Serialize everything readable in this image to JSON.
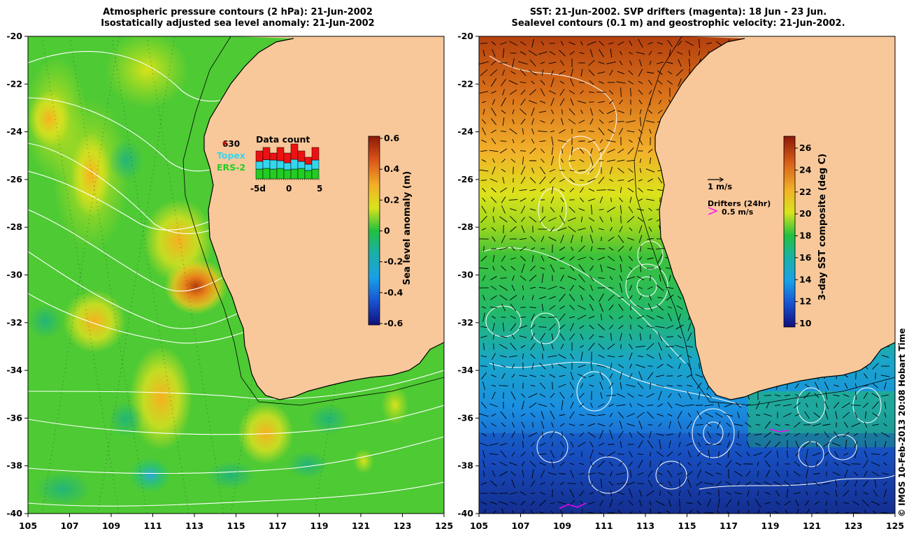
{
  "left_panel": {
    "title_line1": "Atmospheric pressure contours (2 hPa): 21-Jun-2002",
    "title_line2": "Isostatically adjusted sea level anomaly: 21-Jun-2002",
    "colorbar": {
      "label": "Sea level anomaly (m)",
      "ticks": [
        "0.6",
        "0.4",
        "0.2",
        "0",
        "-0.2",
        "-0.4",
        "-0.6"
      ],
      "range": [
        -0.6,
        0.6
      ]
    },
    "inset": {
      "title": "Data count",
      "count_label": "630",
      "sources": [
        {
          "name": "Topex",
          "color": "#33d6ee"
        },
        {
          "name": "ERS-2",
          "color": "#22cc22"
        }
      ],
      "x_ticks": [
        "-5d",
        "0",
        "5"
      ],
      "bars_stack": [
        {
          "green": 0.28,
          "cyan": 0.22,
          "red": 0.3
        },
        {
          "green": 0.3,
          "cyan": 0.25,
          "red": 0.35
        },
        {
          "green": 0.28,
          "cyan": 0.26,
          "red": 0.2
        },
        {
          "green": 0.3,
          "cyan": 0.22,
          "red": 0.38
        },
        {
          "green": 0.26,
          "cyan": 0.2,
          "red": 0.28
        },
        {
          "green": 0.28,
          "cyan": 0.28,
          "red": 0.44
        },
        {
          "green": 0.3,
          "cyan": 0.2,
          "red": 0.3
        },
        {
          "green": 0.24,
          "cyan": 0.18,
          "red": 0.2
        },
        {
          "green": 0.28,
          "cyan": 0.26,
          "red": 0.36
        }
      ]
    }
  },
  "right_panel": {
    "title_line1": "SST: 21-Jun-2002. SVP drifters (magenta): 18 Jun - 23 Jun.",
    "title_line2": "Sealevel contours (0.1 m) and geostrophic velocity: 21-Jun-2002.",
    "colorbar": {
      "label": "3-day SST composite (deg C)",
      "ticks": [
        "26",
        "24",
        "22",
        "20",
        "18",
        "16",
        "14",
        "12",
        "10"
      ],
      "range": [
        10,
        27
      ]
    },
    "legend": {
      "velocity_label": "1 m/s",
      "drifter_title": "Drifters (24hr)",
      "drifter_label": "0.5 m/s",
      "drifter_color": "#ff00ff"
    }
  },
  "axes": {
    "x_ticks": [
      "105",
      "107",
      "109",
      "111",
      "113",
      "115",
      "117",
      "119",
      "121",
      "123",
      "125"
    ],
    "y_ticks": [
      "-20",
      "-22",
      "-24",
      "-26",
      "-28",
      "-30",
      "-32",
      "-34",
      "-36",
      "-38",
      "-40"
    ],
    "lon_range": [
      105,
      125
    ],
    "lat_range": [
      -40,
      -20
    ]
  },
  "colors": {
    "land": "#f8c89a",
    "coast": "#000000",
    "contour": "#ffffff"
  },
  "copyright": "© IMOS 10-Feb-2013 20:08 Hobart Time"
}
